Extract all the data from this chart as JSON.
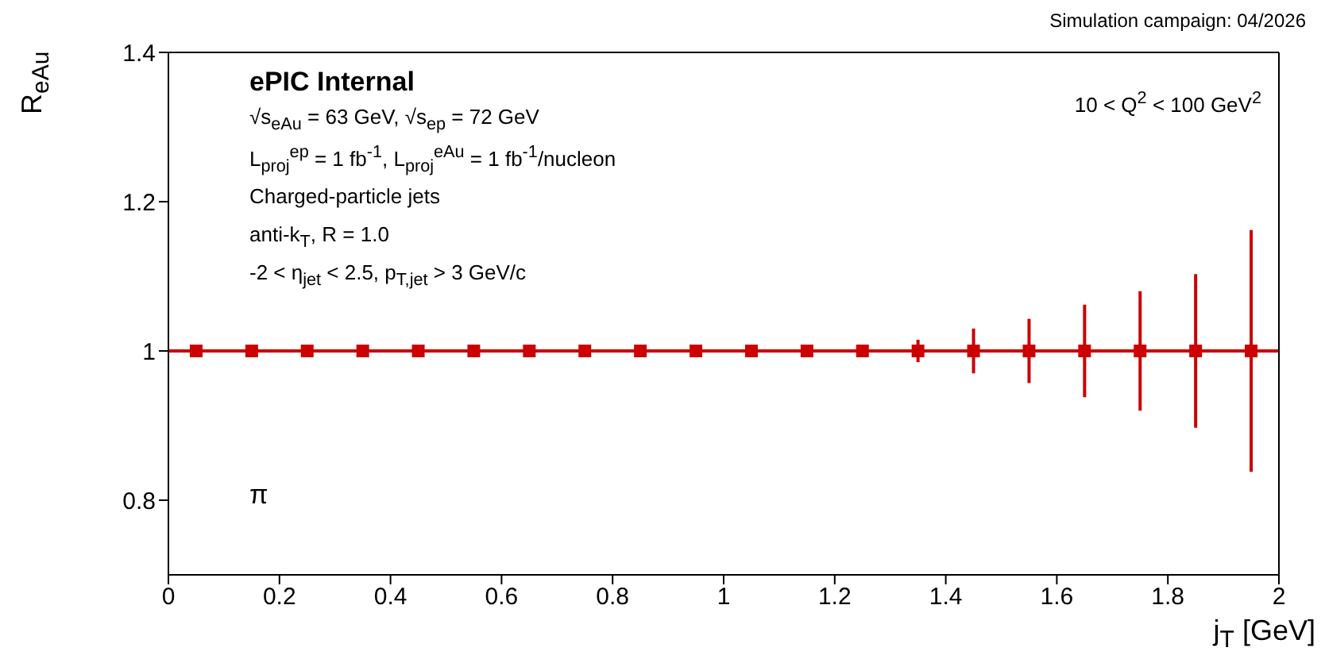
{
  "chart_data": {
    "type": "scatter",
    "subtitle": "Simulation campaign: 04/2026",
    "xlabel": "j$_{T}$ [GeV]",
    "ylabel": "R$_{eAu}$",
    "annotations": [
      "ePIC Internal",
      "√s$_{eAu}$ = 63 GeV, √s$_{ep}$ = 72 GeV",
      "L$_{proj}$$^{ep}$ = 1 fb$^{-1}$, L$_{proj}$$^{eAu}$ = 1 fb$^{-1}$/nucleon",
      "Charged-particle jets",
      "anti-k$_{T}$, R = 1.0",
      "-2 < η$_{jet}$ < 2.5, p$_{T,jet}$ > 3 GeV/c",
      "10 < Q$^{2}$ < 100 GeV$^{2}$",
      "π"
    ],
    "x": [
      0.05,
      0.15,
      0.25,
      0.35,
      0.45,
      0.55,
      0.65,
      0.75,
      0.85,
      0.95,
      1.05,
      1.15,
      1.25,
      1.35,
      1.45,
      1.55,
      1.65,
      1.75,
      1.85,
      1.95
    ],
    "series": [
      {
        "color": "#cc0000",
        "values": [
          1,
          1,
          1,
          1,
          1,
          1,
          1,
          1,
          1,
          1,
          1,
          1,
          1,
          1,
          1,
          1,
          1,
          1,
          1,
          1
        ],
        "errors": [
          null,
          null,
          null,
          null,
          null,
          null,
          null,
          null,
          null,
          null,
          null,
          0.004,
          0.007,
          0.015,
          0.03,
          0.043,
          0.062,
          0.08,
          0.103,
          0.162
        ]
      }
    ],
    "ref_lines": [
      {
        "axis": "y",
        "value": 1,
        "color": "#cc0000"
      }
    ],
    "marker": "square",
    "xlim": [
      0,
      2
    ],
    "xticks": [
      0,
      0.2,
      0.4,
      0.6,
      0.8,
      1,
      1.2,
      1.4,
      1.6,
      1.8,
      2
    ],
    "ylim": [
      0.7,
      1.4
    ],
    "yticks": [
      0.8,
      1,
      1.2,
      1.4
    ],
    "grid": false,
    "legend": false
  }
}
